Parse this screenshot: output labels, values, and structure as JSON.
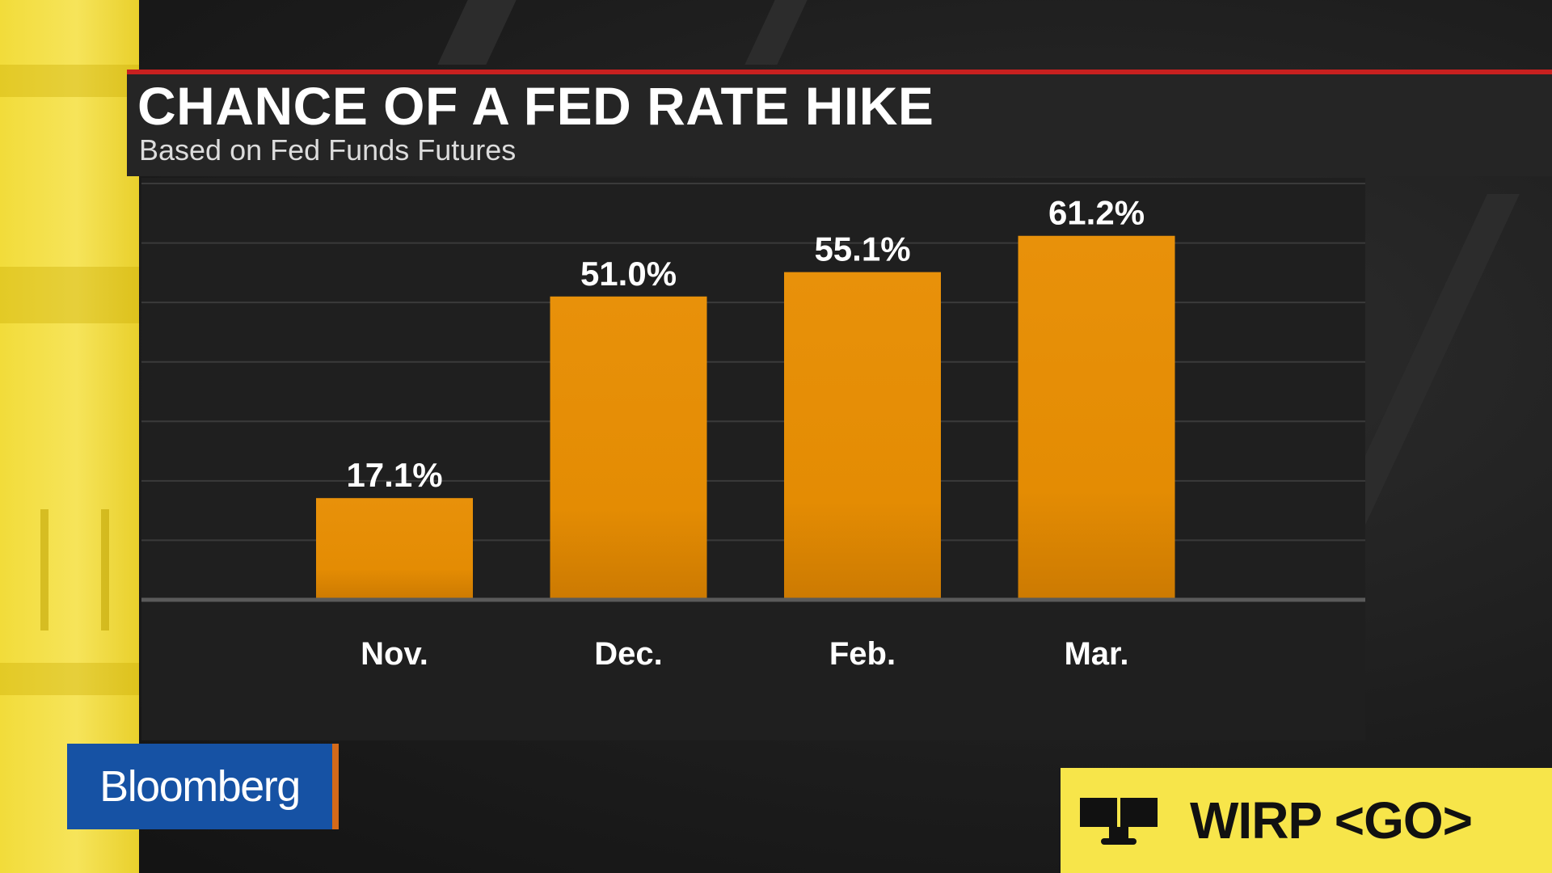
{
  "header": {
    "title": "CHANCE OF A FED RATE HIKE",
    "subtitle": "Based on Fed Funds Futures"
  },
  "branding": {
    "logo_text": "Bloomberg",
    "function_code": "WIRP <GO>"
  },
  "colors": {
    "bar": "#E48C03",
    "accent_red": "#C8201F",
    "brand_blue": "#1652A4",
    "brand_yellow": "#F7E54A"
  },
  "chart_data": {
    "type": "bar",
    "title": "CHANCE OF A FED RATE HIKE",
    "subtitle": "Based on Fed Funds Futures",
    "categories": [
      "Nov.",
      "Dec.",
      "Feb.",
      "Mar."
    ],
    "values": [
      17.1,
      51.0,
      55.1,
      61.2
    ],
    "data_labels": [
      "17.1%",
      "51.0%",
      "55.1%",
      "61.2%"
    ],
    "unit": "%",
    "ylim": [
      0,
      70
    ],
    "grid": true,
    "legend": "none"
  }
}
